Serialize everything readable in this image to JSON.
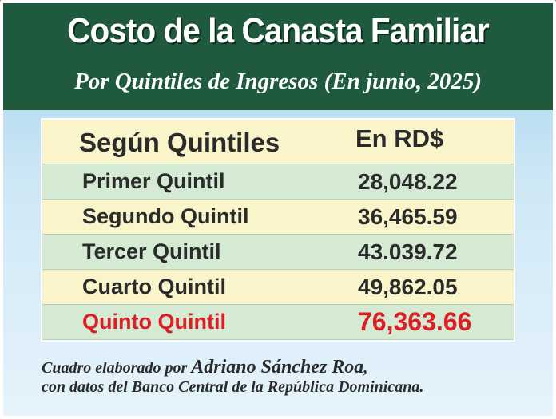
{
  "header": {
    "title": "Costo de la Canasta Familiar",
    "subtitle": "Por Quintiles de Ingresos (En junio, 2025)"
  },
  "table": {
    "col_label_header": "Según Quintiles",
    "col_value_header": "En RD$",
    "rows": [
      {
        "label": "Primer Quintil",
        "value": "28,048.22"
      },
      {
        "label": "Segundo Quintil",
        "value": "36,465.59"
      },
      {
        "label": "Tercer Quintil",
        "value": "43.039.72"
      },
      {
        "label": "Cuarto Quintil",
        "value": "49,862.05"
      },
      {
        "label": "Quinto Quintil",
        "value": "76,363.66"
      }
    ]
  },
  "footer": {
    "prefix": "Cuadro elaborado por ",
    "author": "Adriano Sánchez Roa",
    "suffix": ",",
    "line2": "con datos del Banco Central de la República Dominicana."
  },
  "colors": {
    "header_bg": "#1f5a3e",
    "row_green": "#d4ead3",
    "row_cream": "#f9f4c9",
    "highlight_red": "#e01c24"
  }
}
